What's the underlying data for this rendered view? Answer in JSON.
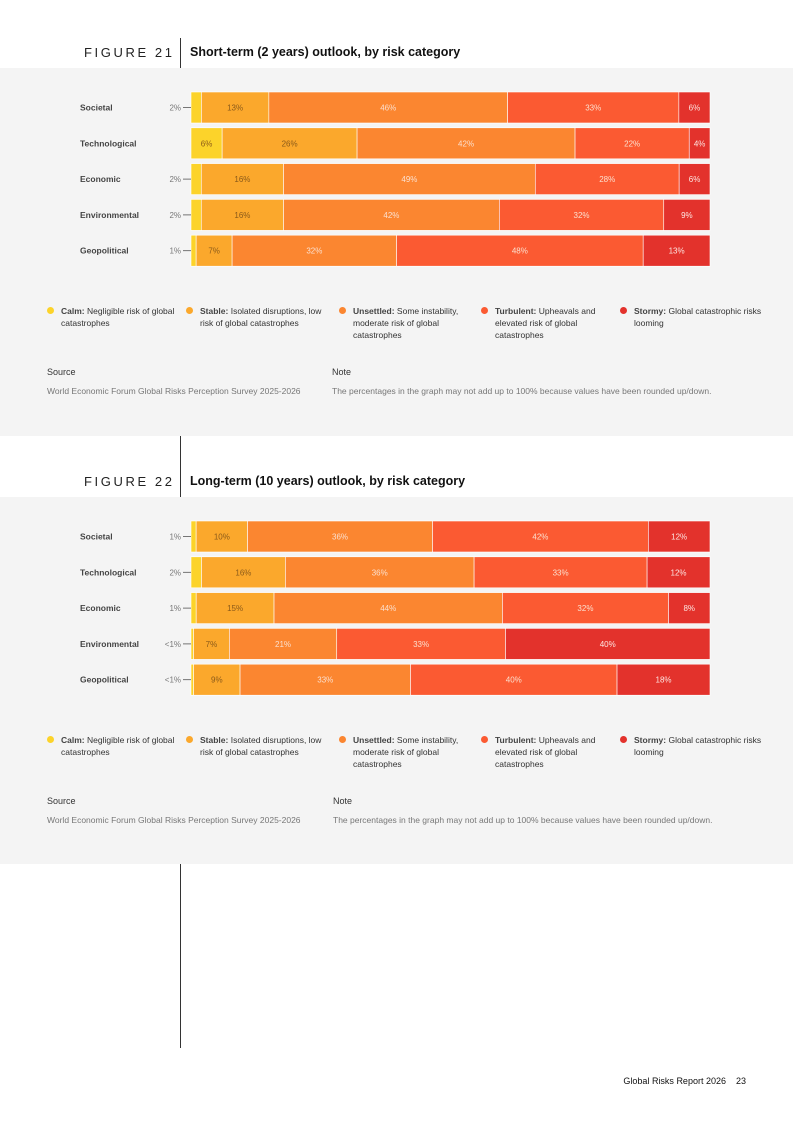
{
  "colors": {
    "calm": "#fcd32a",
    "stable": "#fba82c",
    "unsettled": "#fb8630",
    "turbulent": "#fb5a32",
    "stormy": "#e3322c"
  },
  "legend": [
    {
      "key": "calm",
      "bold": "Calm:",
      "text": "Negligible risk of global catastrophes"
    },
    {
      "key": "stable",
      "bold": "Stable:",
      "text": "Isolated disruptions, low risk of global catastrophes"
    },
    {
      "key": "unsettled",
      "bold": "Unsettled:",
      "text": "Some instability, moderate risk of global catastrophes"
    },
    {
      "key": "turbulent",
      "bold": "Turbulent:",
      "text": "Upheavals and elevated risk of global catastrophes"
    },
    {
      "key": "stormy",
      "bold": "Stormy:",
      "text": "Global catastrophic risks looming"
    }
  ],
  "figure21": {
    "label": "FIGURE 21",
    "title": "Short-term (2 years) outlook, by risk category",
    "source_head": "Source",
    "source_text": "World Economic Forum Global Risks Perception Survey 2025-2026",
    "note_head": "Note",
    "note_text": "The percentages in the graph may not add up to 100% because values have been rounded up/down."
  },
  "figure22": {
    "label": "FIGURE 22",
    "title": "Long-term (10 years) outlook, by risk category",
    "source_head": "Source",
    "source_text": "World Economic Forum Global Risks Perception Survey 2025-2026",
    "note_head": "Note",
    "note_text": "The percentages in the graph may not add up to 100% because values have been rounded up/down."
  },
  "chart_data": [
    {
      "type": "bar",
      "stacked": true,
      "orientation": "horizontal",
      "title": "Short-term (2 years) outlook, by risk category",
      "categories": [
        "Societal",
        "Technological",
        "Economic",
        "Environmental",
        "Geopolitical"
      ],
      "series": [
        {
          "name": "Calm",
          "values": [
            2,
            6,
            2,
            2,
            1
          ],
          "labels": [
            "2%",
            "6%",
            "2%",
            "2%",
            "1%"
          ]
        },
        {
          "name": "Stable",
          "values": [
            13,
            26,
            16,
            16,
            7
          ],
          "labels": [
            "13%",
            "26%",
            "16%",
            "16%",
            "7%"
          ]
        },
        {
          "name": "Unsettled",
          "values": [
            46,
            42,
            49,
            42,
            32
          ],
          "labels": [
            "46%",
            "42%",
            "49%",
            "42%",
            "32%"
          ]
        },
        {
          "name": "Turbulent",
          "values": [
            33,
            22,
            28,
            32,
            48
          ],
          "labels": [
            "33%",
            "22%",
            "28%",
            "32%",
            "48%"
          ]
        },
        {
          "name": "Stormy",
          "values": [
            6,
            4,
            6,
            9,
            13
          ],
          "labels": [
            "6%",
            "4%",
            "6%",
            "9%",
            "13%"
          ]
        }
      ]
    },
    {
      "type": "bar",
      "stacked": true,
      "orientation": "horizontal",
      "title": "Long-term (10 years) outlook, by risk category",
      "categories": [
        "Societal",
        "Technological",
        "Economic",
        "Environmental",
        "Geopolitical"
      ],
      "series": [
        {
          "name": "Calm",
          "values": [
            1,
            2,
            1,
            0.5,
            0.5
          ],
          "labels": [
            "1%",
            "2%",
            "1%",
            "<1%",
            "<1%"
          ]
        },
        {
          "name": "Stable",
          "values": [
            10,
            16,
            15,
            7,
            9
          ],
          "labels": [
            "10%",
            "16%",
            "15%",
            "7%",
            "9%"
          ]
        },
        {
          "name": "Unsettled",
          "values": [
            36,
            36,
            44,
            21,
            33
          ],
          "labels": [
            "36%",
            "36%",
            "44%",
            "21%",
            "33%"
          ]
        },
        {
          "name": "Turbulent",
          "values": [
            42,
            33,
            32,
            33,
            40
          ],
          "labels": [
            "42%",
            "33%",
            "32%",
            "33%",
            "40%"
          ]
        },
        {
          "name": "Stormy",
          "values": [
            12,
            12,
            8,
            40,
            18
          ],
          "labels": [
            "12%",
            "12%",
            "8%",
            "40%",
            "18%"
          ]
        }
      ]
    }
  ],
  "footer": {
    "title": "Global Risks Report 2026",
    "page": "23"
  }
}
